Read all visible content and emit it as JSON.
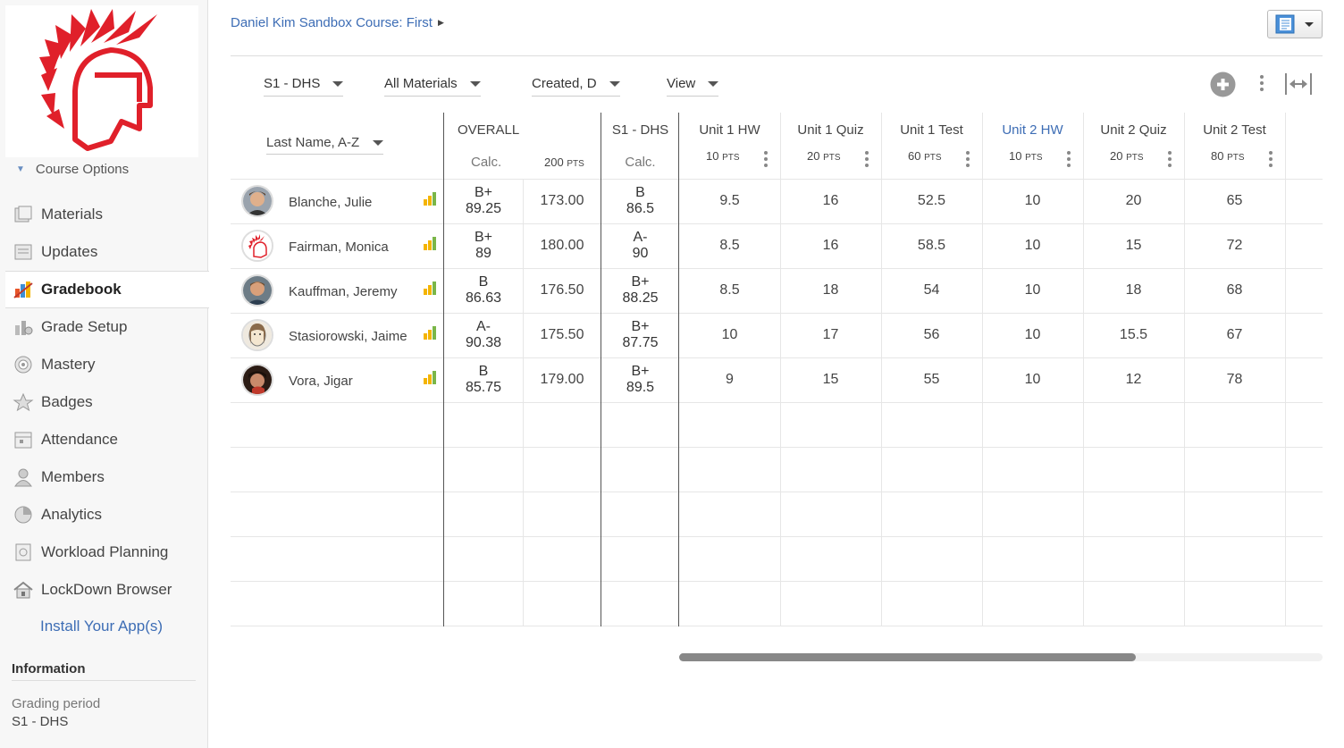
{
  "breadcrumb": {
    "course": "Daniel Kim Sandbox Course: First"
  },
  "sidebar": {
    "course_options": "Course Options",
    "items": [
      {
        "label": "Materials",
        "icon": "materials-icon"
      },
      {
        "label": "Updates",
        "icon": "updates-icon"
      },
      {
        "label": "Gradebook",
        "icon": "gradebook-icon",
        "active": true
      },
      {
        "label": "Grade Setup",
        "icon": "grade-setup-icon"
      },
      {
        "label": "Mastery",
        "icon": "mastery-icon"
      },
      {
        "label": "Badges",
        "icon": "badges-icon"
      },
      {
        "label": "Attendance",
        "icon": "attendance-icon"
      },
      {
        "label": "Members",
        "icon": "members-icon"
      },
      {
        "label": "Analytics",
        "icon": "analytics-icon"
      },
      {
        "label": "Workload Planning",
        "icon": "workload-icon"
      },
      {
        "label": "LockDown Browser",
        "icon": "lockdown-icon"
      }
    ],
    "install": "Install Your App(s)",
    "info_title": "Information",
    "grading_period_label": "Grading period",
    "grading_period_value": "S1 - DHS"
  },
  "filters": {
    "period": "S1 - DHS",
    "materials": "All Materials",
    "sort": "Created, D",
    "view": "View"
  },
  "gradebook": {
    "sort_label": "Last Name, A-Z",
    "overall": {
      "title": "OVERALL",
      "calc": "Calc.",
      "pts": "200",
      "pts_unit": "PTS"
    },
    "period_col": {
      "title": "S1 - DHS",
      "calc": "Calc."
    },
    "columns": [
      {
        "title": "Unit 1 HW",
        "pts": "10",
        "unit": "PTS"
      },
      {
        "title": "Unit 1 Quiz",
        "pts": "20",
        "unit": "PTS"
      },
      {
        "title": "Unit 1 Test",
        "pts": "60",
        "unit": "PTS"
      },
      {
        "title": "Unit 2 HW",
        "pts": "10",
        "unit": "PTS",
        "link": true
      },
      {
        "title": "Unit 2 Quiz",
        "pts": "20",
        "unit": "PTS"
      },
      {
        "title": "Unit 2 Test",
        "pts": "80",
        "unit": "PTS"
      }
    ],
    "students": [
      {
        "name": "Blanche, Julie",
        "overall_letter": "B+",
        "overall_pct": "89.25",
        "points": "173.00",
        "period_letter": "B",
        "period_pct": "86.5",
        "scores": [
          "9.5",
          "16",
          "52.5",
          "10",
          "20",
          "65"
        ]
      },
      {
        "name": "Fairman, Monica",
        "overall_letter": "B+",
        "overall_pct": "89",
        "points": "180.00",
        "period_letter": "A-",
        "period_pct": "90",
        "scores": [
          "8.5",
          "16",
          "58.5",
          "10",
          "15",
          "72"
        ]
      },
      {
        "name": "Kauffman, Jeremy",
        "overall_letter": "B",
        "overall_pct": "86.63",
        "points": "176.50",
        "period_letter": "B+",
        "period_pct": "88.25",
        "scores": [
          "8.5",
          "18",
          "54",
          "10",
          "18",
          "68"
        ]
      },
      {
        "name": "Stasiorowski, Jaime",
        "overall_letter": "A-",
        "overall_pct": "90.38",
        "points": "175.50",
        "period_letter": "B+",
        "period_pct": "87.75",
        "scores": [
          "10",
          "17",
          "56",
          "10",
          "15.5",
          "67"
        ]
      },
      {
        "name": "Vora, Jigar",
        "overall_letter": "B",
        "overall_pct": "85.75",
        "points": "179.00",
        "period_letter": "B+",
        "period_pct": "89.5",
        "scores": [
          "9",
          "15",
          "55",
          "10",
          "12",
          "78"
        ]
      }
    ]
  },
  "colors": {
    "accent": "#3d6db5",
    "logo_red": "#e0202a"
  }
}
